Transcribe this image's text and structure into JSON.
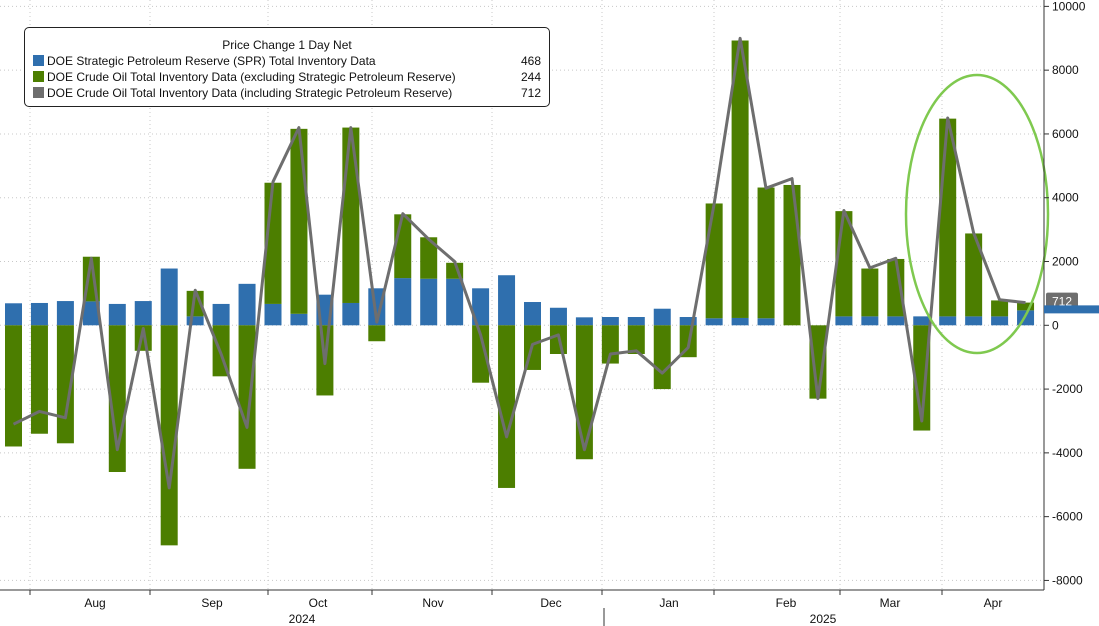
{
  "chart_data": {
    "type": "bar+line",
    "title": "Price Change 1 Day Net",
    "colors": {
      "background": "#ffffff",
      "spr": "#2f6fae",
      "crude_ex": "#4c7e00",
      "crude_incl": "#6e6e6e",
      "annotation": "#7fc94f",
      "axis": "#333333"
    },
    "ylim": [
      -8300,
      10200
    ],
    "yticks": [
      -8000,
      -6000,
      -4000,
      -2000,
      0,
      2000,
      4000,
      6000,
      8000,
      10000
    ],
    "ytick_labels": [
      "-8000",
      "-6000",
      "-4000",
      "-2000",
      "0",
      "2000",
      "4000",
      "6000",
      "8000",
      "10000"
    ],
    "month_labels": [
      "Aug",
      "Sep",
      "Oct",
      "Nov",
      "Dec",
      "Jan",
      "Feb",
      "Mar",
      "Apr"
    ],
    "year_labels": [
      "2024",
      "2025"
    ],
    "series": [
      {
        "name": "DOE Strategic Petroleum Reserve (SPR) Total Inventory Data",
        "last": "468",
        "values": [
          690,
          700,
          760,
          750,
          670,
          760,
          1780,
          280,
          670,
          1300,
          670,
          360,
          960,
          700,
          1160,
          1480,
          1460,
          1460,
          1160,
          1570,
          730,
          550,
          250,
          260,
          260,
          520,
          260,
          220,
          230,
          220,
          0,
          0,
          280,
          280,
          280,
          280,
          280,
          280,
          280,
          468
        ]
      },
      {
        "name": "DOE Crude Oil Total Inventory Data (excluding Strategic Petroleum Reserve)",
        "last": "244",
        "values": [
          -3800,
          -3400,
          -3700,
          1400,
          -4600,
          -800,
          -6900,
          800,
          -1600,
          -4500,
          3800,
          5800,
          -2200,
          5500,
          -500,
          2000,
          1300,
          500,
          -1800,
          -5100,
          -1400,
          -900,
          -4200,
          -1200,
          -900,
          -2000,
          -1000,
          3600,
          8700,
          4100,
          4400,
          -2300,
          3300,
          1500,
          1800,
          -3300,
          6200,
          2600,
          500,
          244
        ]
      },
      {
        "name": "DOE Crude Oil Total Inventory Data (including Strategic Petroleum Reserve)",
        "last": "712",
        "values": [
          -3100,
          -2700,
          -2900,
          2100,
          -3900,
          -100,
          -5100,
          1100,
          -900,
          -3200,
          4500,
          6200,
          -1200,
          6200,
          100,
          3500,
          2700,
          2000,
          -300,
          -3500,
          -600,
          -300,
          -3900,
          -900,
          -800,
          -1500,
          -700,
          3800,
          9000,
          4300,
          4600,
          -2300,
          3600,
          1800,
          2100,
          -3000,
          6500,
          2900,
          800,
          712
        ]
      }
    ],
    "last_value_label": "712",
    "last_value_secondary": "468"
  }
}
